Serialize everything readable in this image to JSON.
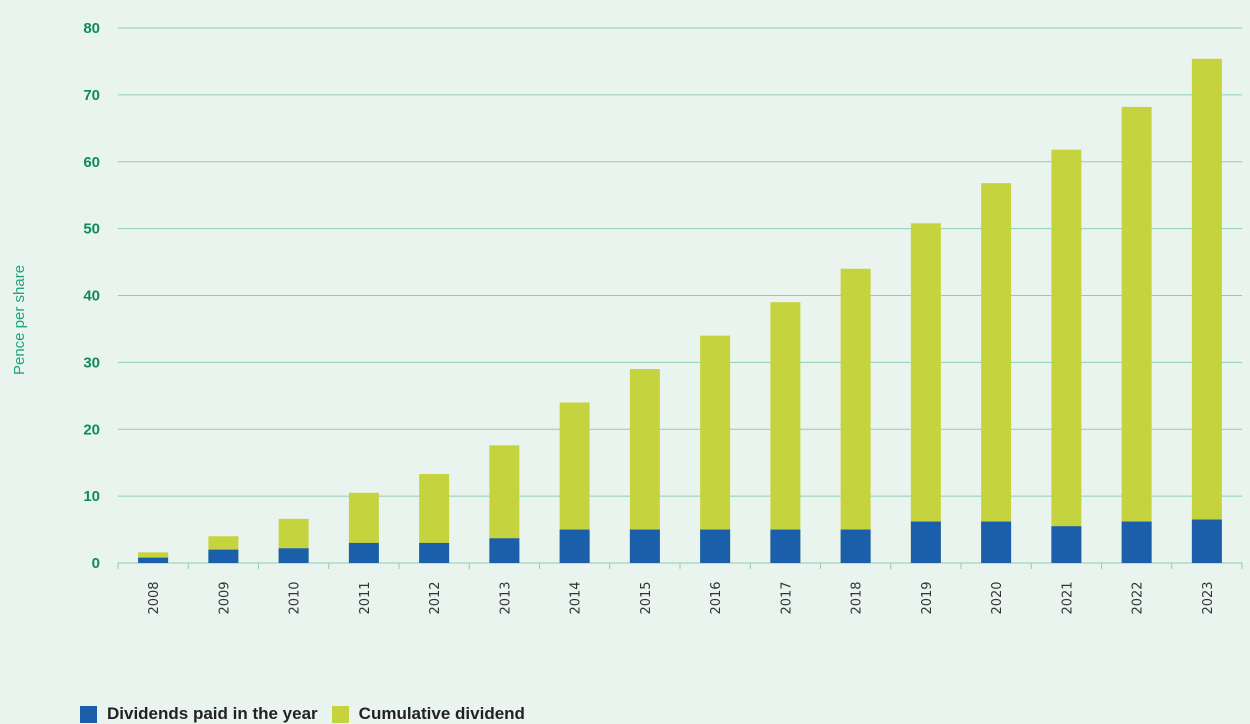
{
  "colors": {
    "annual": "#1b5faa",
    "cumulative": "#c5d33f",
    "gridline": "#8fcdb4",
    "tick_text": "#0f8a5f",
    "ylabel_text": "#1fa37a",
    "background": "#e9f4ef"
  },
  "chart_data": {
    "type": "bar",
    "stacked": true,
    "title": "",
    "xlabel": "",
    "ylabel": "Pence per share",
    "ylim": [
      0,
      80
    ],
    "yticks": [
      "0",
      "10",
      "20",
      "30",
      "40",
      "50",
      "60",
      "70",
      "80"
    ],
    "grid": true,
    "legend_position": "bottom-left",
    "categories": [
      "2008",
      "2009",
      "2010",
      "2011",
      "2012",
      "2013",
      "2014",
      "2015",
      "2016",
      "2017",
      "2018",
      "2019",
      "2020",
      "2021",
      "2022",
      "2023"
    ],
    "series": [
      {
        "name": "Dividends paid in the year",
        "values": [
          0.8,
          2.0,
          2.2,
          3.0,
          3.0,
          3.7,
          5.0,
          5.0,
          5.0,
          5.0,
          5.0,
          6.2,
          6.2,
          5.5,
          6.2,
          6.5
        ]
      },
      {
        "name": "Cumulative dividend",
        "values": [
          1.6,
          4.0,
          6.6,
          10.5,
          13.3,
          17.6,
          24.0,
          29.0,
          34.0,
          39.0,
          44.0,
          50.8,
          56.8,
          61.8,
          68.2,
          75.4
        ]
      }
    ]
  }
}
